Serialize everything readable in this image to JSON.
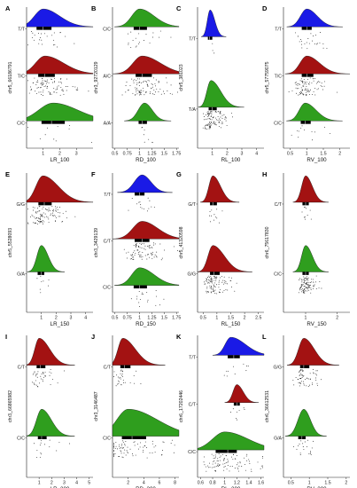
{
  "colors": {
    "T/T": "#1a1ae6",
    "T/C": "#a31212",
    "A/C": "#a31212",
    "C/T": "#a31212",
    "G/T": "#a31212",
    "G/G": "#a31212",
    "C/C": "#2f9e1e",
    "A/A": "#2f9e1e",
    "T/A": "#2f9e1e",
    "G/A": "#2f9e1e"
  },
  "chart_data": [
    {
      "panel": "A",
      "type": "raincloud",
      "snp": "chr5_66186791",
      "xlabel": "LR_100",
      "xlim": [
        0,
        4
      ],
      "xticks": [
        1,
        2,
        3
      ],
      "groups": [
        {
          "genotype": "T/T",
          "median": 1.0,
          "q1": 0.6,
          "q3": 1.5,
          "peak": 1.0,
          "n": 25
        },
        {
          "genotype": "T/C",
          "median": 1.1,
          "q1": 0.7,
          "q3": 1.7,
          "peak": 1.1,
          "n": 90
        },
        {
          "genotype": "C/C",
          "median": 1.5,
          "q1": 0.9,
          "q3": 2.3,
          "peak": 1.6,
          "n": 10
        }
      ]
    },
    {
      "panel": "B",
      "type": "raincloud",
      "snp": "chr3_92720129",
      "xlabel": "RD_100",
      "xlim": [
        0.45,
        1.8
      ],
      "xticks": [
        0.5,
        0.75,
        1.0,
        1.25,
        1.5,
        1.75
      ],
      "groups": [
        {
          "genotype": "C/C",
          "median": 1.0,
          "q1": 0.88,
          "q3": 1.15,
          "peak": 1.0,
          "n": 20
        },
        {
          "genotype": "A/C",
          "median": 1.05,
          "q1": 0.92,
          "q3": 1.25,
          "peak": 1.05,
          "n": 90
        },
        {
          "genotype": "A/A",
          "median": 1.05,
          "q1": 0.98,
          "q3": 1.15,
          "peak": 1.1,
          "n": 8
        }
      ]
    },
    {
      "panel": "C",
      "type": "raincloud",
      "snp": "chr5_381023",
      "xlabel": "RL_100",
      "xlim": [
        0,
        4.5
      ],
      "xticks": [
        1,
        2,
        3,
        4
      ],
      "groups": [
        {
          "genotype": "T/T",
          "median": 0.8,
          "q1": 0.7,
          "q3": 1.0,
          "peak": 0.85,
          "n": 3
        },
        {
          "genotype": "T/A",
          "median": 1.0,
          "q1": 0.75,
          "q3": 1.3,
          "peak": 0.9,
          "n": 110
        }
      ]
    },
    {
      "panel": "D",
      "type": "raincloud",
      "snp": "chr5_57759075",
      "xlabel": "RV_100",
      "xlim": [
        0.3,
        2.3
      ],
      "xticks": [
        0.5,
        1.0,
        1.5,
        2.0
      ],
      "groups": [
        {
          "genotype": "T/T",
          "median": 1.0,
          "q1": 0.85,
          "q3": 1.15,
          "peak": 1.0,
          "n": 25
        },
        {
          "genotype": "T/C",
          "median": 1.0,
          "q1": 0.85,
          "q3": 1.2,
          "peak": 1.0,
          "n": 90
        },
        {
          "genotype": "C/C",
          "median": 0.95,
          "q1": 0.82,
          "q3": 1.12,
          "peak": 0.95,
          "n": 12
        }
      ]
    },
    {
      "panel": "E",
      "type": "raincloud",
      "snp": "chr5_5528093",
      "xlabel": "LR_150",
      "xlim": [
        0,
        4.5
      ],
      "xticks": [
        1,
        2,
        3,
        4
      ],
      "groups": [
        {
          "genotype": "G/G",
          "median": 1.2,
          "q1": 0.8,
          "q3": 1.7,
          "peak": 1.1,
          "n": 100
        },
        {
          "genotype": "G/A",
          "median": 1.0,
          "q1": 0.75,
          "q3": 1.2,
          "peak": 1.0,
          "n": 8
        }
      ]
    },
    {
      "panel": "F",
      "type": "raincloud",
      "snp": "chr3_3429139",
      "xlabel": "RD_150",
      "xlim": [
        0.45,
        1.8
      ],
      "xticks": [
        0.5,
        0.75,
        1.0,
        1.25,
        1.5,
        1.75
      ],
      "groups": [
        {
          "genotype": "T/T",
          "median": 1.0,
          "q1": 0.9,
          "q3": 1.1,
          "peak": 1.05,
          "n": 15
        },
        {
          "genotype": "C/T",
          "median": 1.05,
          "q1": 0.9,
          "q3": 1.2,
          "peak": 1.05,
          "n": 85
        },
        {
          "genotype": "C/C",
          "median": 1.0,
          "q1": 0.88,
          "q3": 1.15,
          "peak": 1.0,
          "n": 18
        }
      ]
    },
    {
      "panel": "G",
      "type": "raincloud",
      "snp": "chr5_41320598",
      "xlabel": "RL_150",
      "xlim": [
        0.3,
        2.7
      ],
      "xticks": [
        0.5,
        1.0,
        1.5,
        2.0,
        2.5
      ],
      "groups": [
        {
          "genotype": "G/T",
          "median": 0.85,
          "q1": 0.75,
          "q3": 1.0,
          "peak": 0.85,
          "n": 12
        },
        {
          "genotype": "G/G",
          "median": 0.9,
          "q1": 0.75,
          "q3": 1.1,
          "peak": 0.85,
          "n": 100
        }
      ]
    },
    {
      "panel": "H",
      "type": "raincloud",
      "snp": "chr6_75617830",
      "xlabel": "RV_150",
      "xlim": [
        0.3,
        2.4
      ],
      "xticks": [
        1,
        2
      ],
      "groups": [
        {
          "genotype": "C/T",
          "median": 1.0,
          "q1": 0.9,
          "q3": 1.1,
          "peak": 1.0,
          "n": 10
        },
        {
          "genotype": "C/C",
          "median": 1.0,
          "q1": 0.9,
          "q3": 1.1,
          "peak": 1.0,
          "n": 100
        }
      ]
    },
    {
      "panel": "I",
      "type": "raincloud",
      "snp": "chr3_66865982",
      "xlabel": "LR_200",
      "xlim": [
        0,
        5.3
      ],
      "xticks": [
        1,
        2,
        3,
        4,
        5
      ],
      "groups": [
        {
          "genotype": "C/T",
          "median": 1.1,
          "q1": 0.8,
          "q3": 1.5,
          "peak": 1.0,
          "n": 40
        },
        {
          "genotype": "C/C",
          "median": 1.2,
          "q1": 0.9,
          "q3": 1.6,
          "peak": 1.2,
          "n": 15
        }
      ]
    },
    {
      "panel": "J",
      "type": "raincloud",
      "snp": "chr3_3146487",
      "xlabel": "RD_200",
      "xlim": [
        0,
        8.5
      ],
      "xticks": [
        2,
        4,
        6,
        8
      ],
      "groups": [
        {
          "genotype": "C/T",
          "median": 1.5,
          "q1": 1.0,
          "q3": 2.3,
          "peak": 1.3,
          "n": 30
        },
        {
          "genotype": "C/C",
          "median": 2.5,
          "q1": 1.2,
          "q3": 4.3,
          "peak": 2.0,
          "n": 80
        }
      ]
    },
    {
      "panel": "K",
      "type": "raincloud",
      "snp": "chr6_17202446",
      "xlabel": "RL_200",
      "xlim": [
        0.55,
        1.65
      ],
      "xticks": [
        0.6,
        0.8,
        1.0,
        1.2,
        1.4,
        1.6
      ],
      "groups": [
        {
          "genotype": "T/T",
          "median": 1.15,
          "q1": 1.05,
          "q3": 1.25,
          "peak": 1.1,
          "n": 10
        },
        {
          "genotype": "C/T",
          "median": 1.2,
          "q1": 1.15,
          "q3": 1.25,
          "peak": 1.2,
          "n": 8
        },
        {
          "genotype": "C/C",
          "median": 1.05,
          "q1": 0.85,
          "q3": 1.2,
          "peak": 1.0,
          "n": 95
        }
      ]
    },
    {
      "panel": "L",
      "type": "raincloud",
      "snp": "chr6_36612531",
      "xlabel": "RV_200",
      "xlim": [
        0.3,
        2.1
      ],
      "xticks": [
        0.5,
        1.0,
        1.5,
        2.0
      ],
      "groups": [
        {
          "genotype": "G/G",
          "median": 0.85,
          "q1": 0.75,
          "q3": 1.0,
          "peak": 0.85,
          "n": 60
        },
        {
          "genotype": "G/A",
          "median": 0.8,
          "q1": 0.7,
          "q3": 0.9,
          "peak": 0.85,
          "n": 20
        }
      ]
    }
  ]
}
